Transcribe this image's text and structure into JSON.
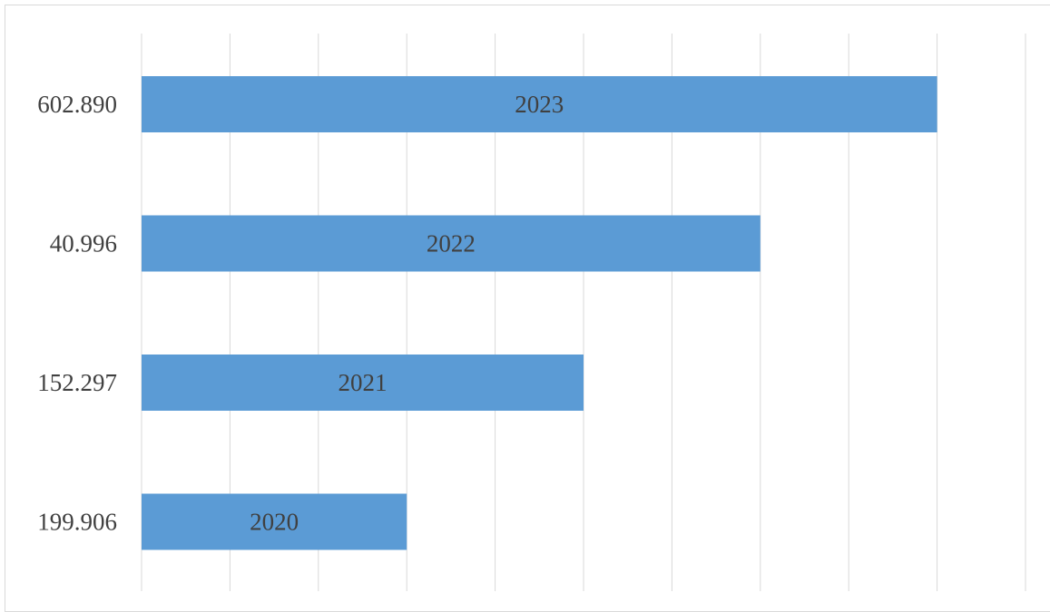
{
  "chart_data": {
    "type": "bar",
    "orientation": "horizontal",
    "categories": [
      "602.890",
      "40.996",
      "152.297",
      "199.906"
    ],
    "values": [
      9,
      7,
      5,
      3
    ],
    "data_labels": [
      "2023",
      "2022",
      "2021",
      "2020"
    ],
    "xlim": [
      0,
      10
    ],
    "grid": true,
    "legend": "none",
    "colors": {
      "bar": "#5b9bd5",
      "grid": "#d9d9d9",
      "text": "#404040"
    }
  }
}
